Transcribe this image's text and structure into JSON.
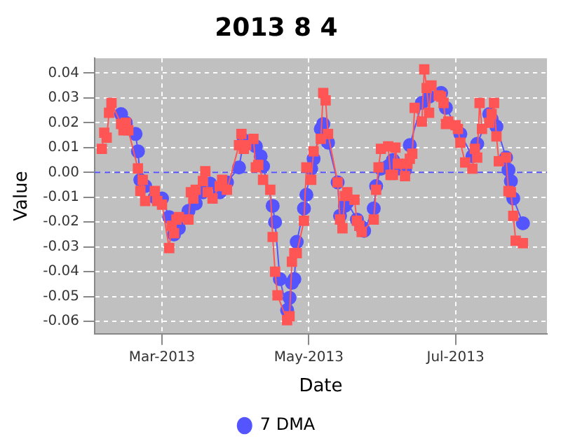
{
  "chart_data": {
    "type": "line",
    "title": "2013 8 4",
    "xlabel": "Date",
    "ylabel": "Value",
    "xlim": [
      "2013-02-01",
      "2013-08-08"
    ],
    "xticks": [
      {
        "value": "2013-03-01",
        "label": "Mar-2013"
      },
      {
        "value": "2013-05-01",
        "label": "May-2013"
      },
      {
        "value": "2013-07-01",
        "label": "Jul-2013"
      }
    ],
    "ylim": [
      -0.065,
      0.046
    ],
    "yticks": [
      {
        "value": -0.06,
        "label": "-0.06"
      },
      {
        "value": -0.05,
        "label": "-0.05"
      },
      {
        "value": -0.04,
        "label": "-0.04"
      },
      {
        "value": -0.03,
        "label": "-0.03"
      },
      {
        "value": -0.02,
        "label": "-0.02"
      },
      {
        "value": -0.01,
        "label": "-0.01"
      },
      {
        "value": 0,
        "label": "0.00"
      },
      {
        "value": 0.01,
        "label": "0.01"
      },
      {
        "value": 0.02,
        "label": "0.02"
      },
      {
        "value": 0.03,
        "label": "0.03"
      },
      {
        "value": 0.04,
        "label": "0.04"
      }
    ],
    "grid": true,
    "legend": "bottom",
    "ref_lines": [
      {
        "axis": "y",
        "value": 0,
        "color": "#5555ff",
        "line_style": "dashed"
      }
    ],
    "series": [
      {
        "color": "#ff5555",
        "marker": "square",
        "x": [
          "2013-02-04",
          "2013-02-05",
          "2013-02-06",
          "2013-02-07",
          "2013-02-08",
          "2013-02-12",
          "2013-02-13",
          "2013-02-14",
          "2013-02-15",
          "2013-02-19",
          "2013-02-20",
          "2013-02-21",
          "2013-02-22",
          "2013-02-26",
          "2013-02-27",
          "2013-03-01",
          "2013-03-04",
          "2013-03-05",
          "2013-03-06",
          "2013-03-07",
          "2013-03-08",
          "2013-03-12",
          "2013-03-13",
          "2013-03-14",
          "2013-03-15",
          "2013-03-18",
          "2013-03-19",
          "2013-03-20",
          "2013-03-22",
          "2013-03-25",
          "2013-03-26",
          "2013-03-28",
          "2013-04-02",
          "2013-04-03",
          "2013-04-04",
          "2013-04-05",
          "2013-04-08",
          "2013-04-09",
          "2013-04-10",
          "2013-04-12",
          "2013-04-15",
          "2013-04-16",
          "2013-04-17",
          "2013-04-18",
          "2013-04-22",
          "2013-04-23",
          "2013-04-24",
          "2013-04-25",
          "2013-04-26",
          "2013-04-29",
          "2013-04-30",
          "2013-05-02",
          "2013-05-03",
          "2013-05-06",
          "2013-05-07",
          "2013-05-08",
          "2013-05-09",
          "2013-05-13",
          "2013-05-14",
          "2013-05-15",
          "2013-05-16",
          "2013-05-17",
          "2013-05-20",
          "2013-05-21",
          "2013-05-22",
          "2013-05-23",
          "2013-05-28",
          "2013-05-29",
          "2013-05-30",
          "2013-05-31",
          "2013-06-03",
          "2013-06-04",
          "2013-06-05",
          "2013-06-06",
          "2013-06-07",
          "2013-06-10",
          "2013-06-11",
          "2013-06-12",
          "2013-06-13",
          "2013-06-14",
          "2013-06-17",
          "2013-06-18",
          "2013-06-19",
          "2013-06-20",
          "2013-06-21",
          "2013-06-24",
          "2013-06-25",
          "2013-06-26",
          "2013-06-27",
          "2013-06-28",
          "2013-07-01",
          "2013-07-02",
          "2013-07-03",
          "2013-07-05",
          "2013-07-08",
          "2013-07-09",
          "2013-07-10",
          "2013-07-11",
          "2013-07-12",
          "2013-07-15",
          "2013-07-16",
          "2013-07-17",
          "2013-07-18",
          "2013-07-19",
          "2013-07-22",
          "2013-07-23",
          "2013-07-24",
          "2013-07-25",
          "2013-07-26",
          "2013-07-29"
        ],
        "values": [
          0.0095,
          0.016,
          0.014,
          0.024,
          0.028,
          0.0195,
          0.017,
          0.02,
          0.017,
          0.0016,
          -0.0074,
          -0.003,
          -0.0115,
          -0.0075,
          -0.0115,
          -0.013,
          -0.0305,
          -0.0215,
          -0.0245,
          -0.019,
          -0.018,
          -0.019,
          -0.008,
          -0.0105,
          -0.007,
          -0.0035,
          0.0005,
          -0.008,
          -0.0105,
          -0.0055,
          -0.003,
          -0.007,
          0.011,
          0.0155,
          0.0095,
          0.011,
          0.0135,
          0.002,
          0.003,
          -0.003,
          -0.007,
          -0.026,
          -0.04,
          -0.0495,
          -0.0595,
          -0.058,
          -0.036,
          -0.0325,
          -0.0325,
          -0.0195,
          0.002,
          -0.003,
          0.0085,
          0.0135,
          0.032,
          0.029,
          0.0155,
          -0.004,
          -0.019,
          -0.0225,
          -0.0095,
          -0.008,
          -0.011,
          -0.0195,
          -0.0215,
          -0.024,
          -0.019,
          -0.007,
          0.002,
          0.0095,
          0.0105,
          -0.001,
          -0.001,
          0.01,
          0.0035,
          -0.0015,
          0.0035,
          0.0055,
          0.0075,
          0.026,
          0.0205,
          0.0415,
          0.034,
          0.024,
          0.035,
          0.031,
          0.0305,
          0.028,
          0.0195,
          0.0205,
          0.019,
          0.0175,
          0.012,
          0.004,
          0.0015,
          0.0095,
          0.006,
          0.028,
          0.0175,
          0.02,
          0.0235,
          0.028,
          0.0145,
          0.0045,
          0.006,
          -0.0075,
          -0.008,
          -0.0175,
          -0.0275,
          -0.0285
        ]
      },
      {
        "name": "7 DMA",
        "color": "#5555ff",
        "marker": "circle",
        "x": [
          "2013-02-12",
          "2013-02-14",
          "2013-02-18",
          "2013-02-19",
          "2013-02-20",
          "2013-02-22",
          "2013-02-26",
          "2013-03-01",
          "2013-03-04",
          "2013-03-06",
          "2013-03-08",
          "2013-03-12",
          "2013-03-15",
          "2013-03-18",
          "2013-03-21",
          "2013-03-25",
          "2013-03-28",
          "2013-04-02",
          "2013-04-04",
          "2013-04-09",
          "2013-04-11",
          "2013-04-12",
          "2013-04-16",
          "2013-04-17",
          "2013-04-19",
          "2013-04-22",
          "2013-04-23",
          "2013-04-24",
          "2013-04-25",
          "2013-04-26",
          "2013-04-29",
          "2013-04-30",
          "2013-05-02",
          "2013-05-03",
          "2013-05-06",
          "2013-05-07",
          "2013-05-09",
          "2013-05-13",
          "2013-05-14",
          "2013-05-16",
          "2013-05-17",
          "2013-05-21",
          "2013-05-23",
          "2013-05-24",
          "2013-05-28",
          "2013-05-29",
          "2013-05-31",
          "2013-06-03",
          "2013-06-05",
          "2013-06-07",
          "2013-06-10",
          "2013-06-12",
          "2013-06-17",
          "2013-06-20",
          "2013-06-25",
          "2013-06-27",
          "2013-07-03",
          "2013-07-08",
          "2013-07-10",
          "2013-07-15",
          "2013-07-16",
          "2013-07-18",
          "2013-07-22",
          "2013-07-23",
          "2013-07-24",
          "2013-07-25",
          "2013-07-29"
        ],
        "values": [
          0.0235,
          0.02,
          0.0155,
          0.0085,
          -0.003,
          -0.0055,
          -0.01,
          -0.0105,
          -0.018,
          -0.025,
          -0.0225,
          -0.0155,
          -0.0125,
          -0.008,
          -0.0045,
          -0.008,
          -0.004,
          0.002,
          0.013,
          0.0105,
          0.0065,
          0.0025,
          -0.0135,
          -0.02,
          -0.043,
          -0.0555,
          -0.0505,
          -0.0445,
          -0.043,
          -0.028,
          -0.0145,
          -0.009,
          0.0015,
          0.0055,
          0.0175,
          0.0195,
          0.012,
          -0.004,
          -0.0175,
          -0.0135,
          -0.012,
          -0.019,
          -0.022,
          -0.0235,
          -0.0145,
          -0.0055,
          0.0015,
          0.0025,
          0.005,
          0.0015,
          0.001,
          0.011,
          0.028,
          0.0305,
          0.032,
          0.026,
          0.0155,
          0.0065,
          0.0115,
          0.0235,
          0.0215,
          0.0185,
          0.006,
          0.001,
          -0.0035,
          -0.0105,
          -0.0205
        ]
      }
    ]
  }
}
